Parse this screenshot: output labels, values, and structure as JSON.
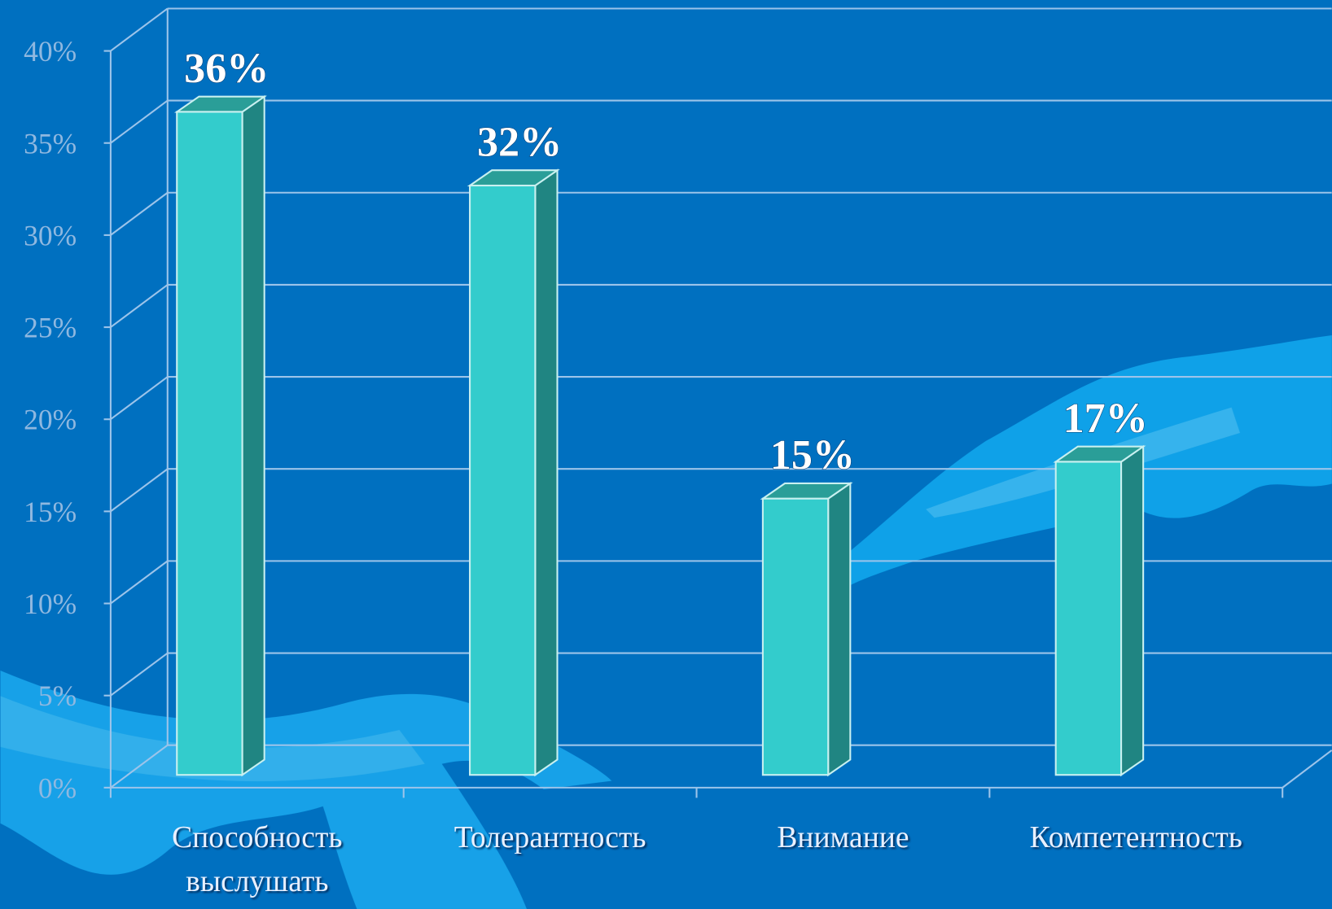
{
  "chart_data": {
    "type": "bar3d",
    "categories": [
      "Способность выслушать",
      "Толерантность",
      "Внимание",
      "Компетентность"
    ],
    "values": [
      36,
      32,
      15,
      17
    ],
    "value_labels": [
      "36%",
      "32%",
      "15%",
      "17%"
    ],
    "color": "#33cccc",
    "ylim": [
      0,
      40
    ],
    "yticks": [
      {
        "value": 0,
        "label": "0%"
      },
      {
        "value": 5,
        "label": "5%"
      },
      {
        "value": 10,
        "label": "10%"
      },
      {
        "value": 15,
        "label": "15%"
      },
      {
        "value": 20,
        "label": "20%"
      },
      {
        "value": 25,
        "label": "25%"
      },
      {
        "value": 30,
        "label": "30%"
      },
      {
        "value": 35,
        "label": "35%"
      },
      {
        "value": 40,
        "label": "40%"
      }
    ],
    "grid": true
  }
}
